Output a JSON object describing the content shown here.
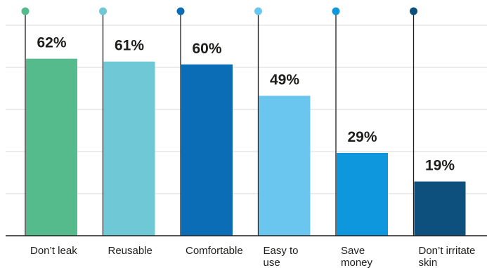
{
  "chart_data": {
    "type": "bar",
    "title": "",
    "xlabel": "",
    "ylabel": "",
    "ylim": [
      0,
      100
    ],
    "grid": true,
    "value_suffix": "%",
    "categories": [
      [
        "Don’t leak"
      ],
      [
        "Reusable"
      ],
      [
        "Comfortable"
      ],
      [
        "Easy to",
        "use"
      ],
      [
        "Save",
        "money"
      ],
      [
        "Don’t irritate",
        "skin"
      ]
    ],
    "values": [
      62,
      61,
      60,
      49,
      29,
      19
    ],
    "value_labels": [
      "62%",
      "61%",
      "60%",
      "49%",
      "29%",
      "19%"
    ],
    "colors": [
      "#55bb8c",
      "#6ec8d5",
      "#0a6db5",
      "#6ac6ef",
      "#0e97dc",
      "#0d4f7d"
    ]
  }
}
